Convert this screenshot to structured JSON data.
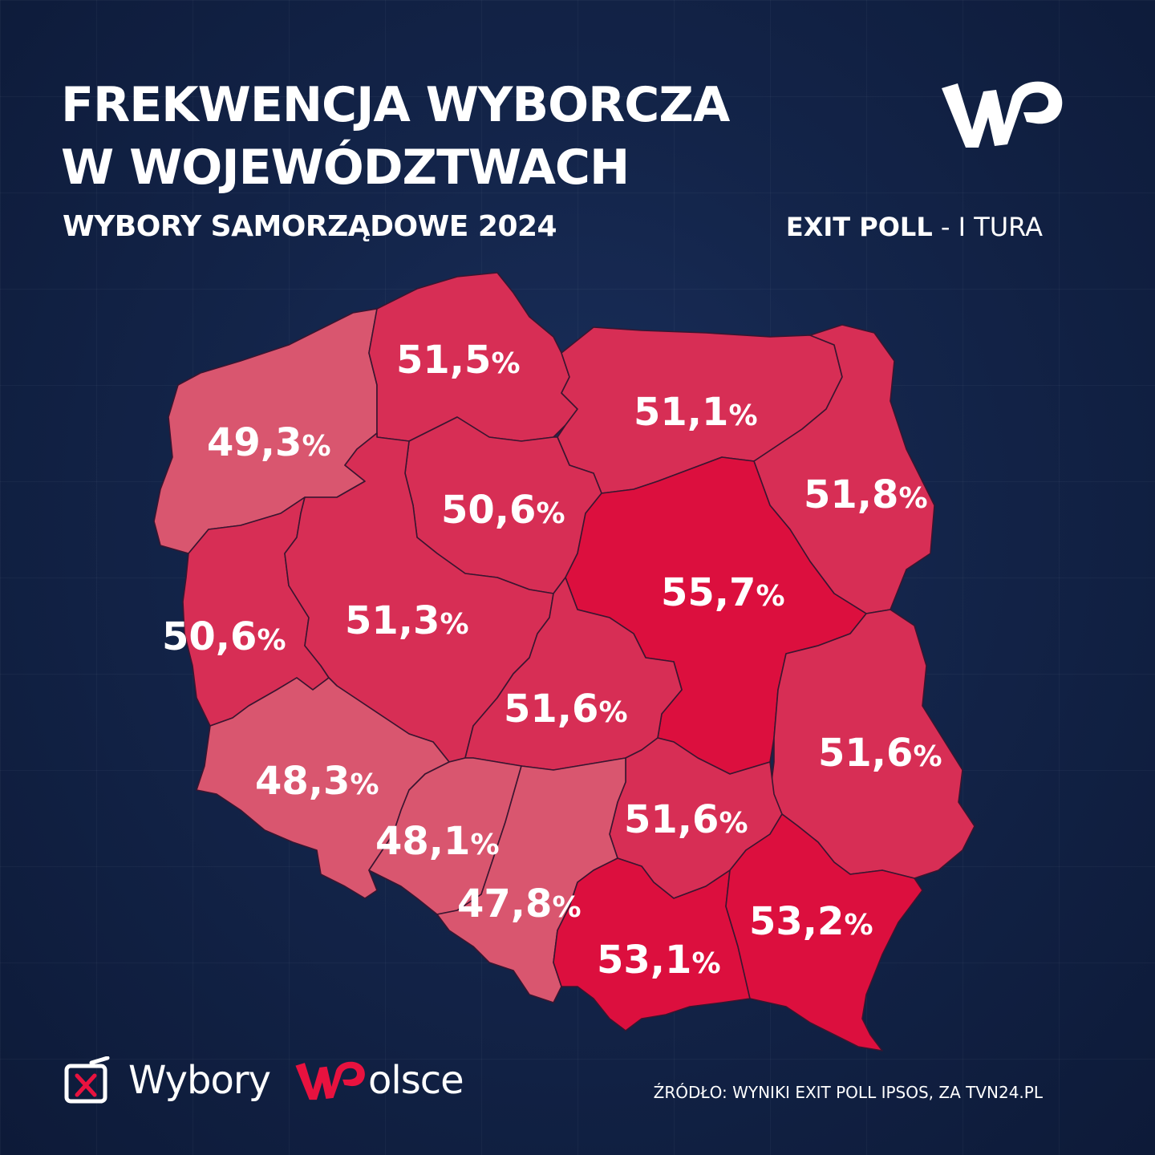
{
  "header": {
    "title_line1": "FREKWENCJA WYBORCZA",
    "title_line2": "W WOJEWÓDZTWACH",
    "subtitle": "WYBORY SAMORZĄDOWE  2024",
    "exit_poll_bold": "EXIT POLL",
    "exit_poll_rest": " - I TURA"
  },
  "logo": {
    "text": "WP",
    "icon": "wp-logo"
  },
  "colors": {
    "background": "#132449",
    "low": "#d9566f",
    "mid": "#d72e55",
    "high": "#dc0f3e",
    "border": "#3a1530"
  },
  "regions": [
    {
      "name": "pomorskie",
      "value": "51,5"
    },
    {
      "name": "warmińsko-mazurskie",
      "value": "51,1"
    },
    {
      "name": "zachodniopomorskie",
      "value": "49,3"
    },
    {
      "name": "kujawsko-pomorskie",
      "value": "50,6"
    },
    {
      "name": "podlaskie",
      "value": "51,8"
    },
    {
      "name": "mazowieckie",
      "value": "55,7"
    },
    {
      "name": "lubuskie",
      "value": "50,6"
    },
    {
      "name": "wielkopolskie",
      "value": "51,3"
    },
    {
      "name": "łódzkie",
      "value": "51,6"
    },
    {
      "name": "lubelskie",
      "value": "51,6"
    },
    {
      "name": "dolnośląskie",
      "value": "48,3"
    },
    {
      "name": "opolskie",
      "value": "48,1"
    },
    {
      "name": "świętokrzyskie",
      "value": "51,6"
    },
    {
      "name": "śląskie",
      "value": "47,8"
    },
    {
      "name": "małopolskie",
      "value": "53,1"
    },
    {
      "name": "podkarpackie",
      "value": "53,2"
    }
  ],
  "percent_sign": "%",
  "footer": {
    "brand_left": "Wybory",
    "brand_right": "olsce",
    "brand_icon": "ballot-box-icon",
    "source": "ŹRÓDŁO: WYNIKI EXIT POLL IPSOS, ZA TVN24.PL"
  }
}
